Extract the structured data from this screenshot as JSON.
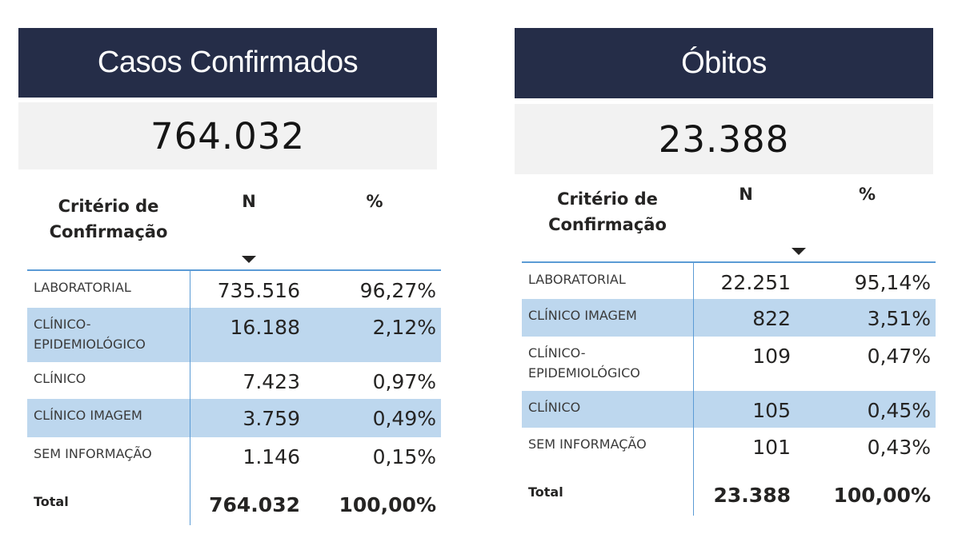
{
  "left": {
    "title": "Casos Confirmados",
    "kpi": "764.032",
    "headers": {
      "category": "Critério de Confirmação",
      "n": "N",
      "pct": "%"
    },
    "rows": [
      {
        "category": "LABORATORIAL",
        "n": "735.516",
        "pct": "96,27%"
      },
      {
        "category": "CLÍNICO-EPIDEMIOLÓGICO",
        "n": "16.188",
        "pct": "2,12%"
      },
      {
        "category": "CLÍNICO",
        "n": "7.423",
        "pct": "0,97%"
      },
      {
        "category": "CLÍNICO IMAGEM",
        "n": "3.759",
        "pct": "0,49%"
      },
      {
        "category": "SEM INFORMAÇÃO",
        "n": "1.146",
        "pct": "0,15%"
      }
    ],
    "total": {
      "label": "Total",
      "n": "764.032",
      "pct": "100,00%"
    }
  },
  "right": {
    "title": "Óbitos",
    "kpi": "23.388",
    "headers": {
      "category": "Critério de Confirmação",
      "n": "N",
      "pct": "%"
    },
    "rows": [
      {
        "category": "LABORATORIAL",
        "n": "22.251",
        "pct": "95,14%"
      },
      {
        "category": "CLÍNICO IMAGEM",
        "n": "822",
        "pct": "3,51%"
      },
      {
        "category": "CLÍNICO-EPIDEMIOLÓGICO",
        "n": "109",
        "pct": "0,47%"
      },
      {
        "category": "CLÍNICO",
        "n": "105",
        "pct": "0,45%"
      },
      {
        "category": "SEM INFORMAÇÃO",
        "n": "101",
        "pct": "0,43%"
      }
    ],
    "total": {
      "label": "Total",
      "n": "23.388",
      "pct": "100,00%"
    }
  },
  "colors": {
    "header_bg": "#252d48",
    "kpi_bg": "#f2f2f2",
    "alt_row": "#bdd7ee",
    "accent": "#5b9bd5"
  },
  "icons": {
    "sort": "sort-descending-icon"
  }
}
